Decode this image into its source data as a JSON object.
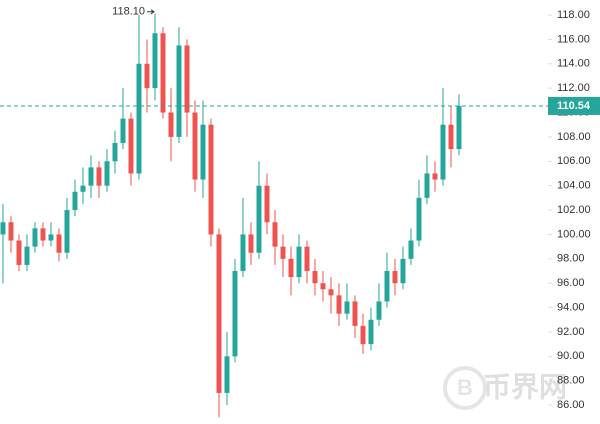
{
  "chart_data": {
    "type": "candlestick",
    "up_color": "#26a69a",
    "down_color": "#ef5350",
    "open": [
      100,
      101,
      99.5,
      97.5,
      99,
      100.5,
      99.5,
      100,
      98.5,
      102,
      103.5,
      104,
      105.5,
      104,
      106,
      107.5,
      109.5,
      105,
      114,
      112,
      116.5,
      110,
      108,
      115.5,
      110,
      104.5,
      109,
      100,
      87,
      90,
      97,
      100,
      98.5,
      104,
      101,
      99,
      98,
      96.5,
      99,
      97,
      96,
      95.5,
      95,
      93.5,
      94.5,
      92.5,
      91,
      93,
      94.5,
      97,
      96,
      98,
      99.5,
      103,
      105,
      104.5,
      109,
      107
    ],
    "high": [
      102.5,
      101.5,
      100,
      100,
      101,
      101,
      101,
      100.5,
      103,
      104.5,
      105.5,
      106.5,
      106,
      107,
      108.5,
      112,
      110,
      118,
      116,
      118.1,
      117,
      112,
      117,
      116,
      111,
      111,
      109.5,
      100.5,
      92,
      98,
      103,
      101,
      106,
      105,
      102,
      100,
      99,
      100,
      99.5,
      98,
      97,
      96.5,
      96,
      96,
      95,
      93.5,
      94,
      96,
      98.5,
      98,
      99,
      100.5,
      104.5,
      106.5,
      106,
      112,
      110.5,
      111.5
    ],
    "low": [
      96,
      98.5,
      97,
      97,
      98.5,
      99,
      99,
      97.8,
      98,
      101.5,
      102.5,
      103,
      103,
      103.5,
      105,
      107,
      104,
      104.5,
      110,
      111,
      109.5,
      106,
      107.5,
      108,
      103.5,
      103,
      99,
      85,
      86,
      89.5,
      96.5,
      97.5,
      98,
      100,
      97.5,
      96.5,
      95,
      96,
      96,
      95,
      94.5,
      93.5,
      92.5,
      93,
      91.5,
      90.2,
      90.5,
      92.5,
      94,
      95,
      95.5,
      97.5,
      99,
      102.5,
      103.5,
      104,
      105.5,
      106.5
    ],
    "close": [
      101,
      99.5,
      97.5,
      99,
      100.5,
      99.5,
      100,
      98.5,
      102,
      103.5,
      104,
      105.5,
      104,
      106,
      107.5,
      109.5,
      105,
      114,
      112,
      116.5,
      110,
      108,
      115.5,
      110,
      104.5,
      109,
      100,
      87,
      90,
      97,
      100,
      98.5,
      104,
      101,
      99,
      98,
      96.5,
      99,
      97,
      96,
      95.5,
      95,
      93.5,
      94.5,
      92.5,
      91,
      93,
      94.5,
      97,
      96,
      98,
      99.5,
      103,
      105,
      104.5,
      109,
      107,
      110.54
    ],
    "ylim": [
      84.45,
      119.23
    ],
    "yticks": [
      {
        "value": 86,
        "label": "86.00"
      },
      {
        "value": 88,
        "label": "88.00"
      },
      {
        "value": 90,
        "label": "90.00"
      },
      {
        "value": 92,
        "label": "92.00"
      },
      {
        "value": 94,
        "label": "94.00"
      },
      {
        "value": 96,
        "label": "96.00"
      },
      {
        "value": 98,
        "label": "98.00"
      },
      {
        "value": 100,
        "label": "100.00"
      },
      {
        "value": 102,
        "label": "102.00"
      },
      {
        "value": 104,
        "label": "104.00"
      },
      {
        "value": 106,
        "label": "106.00"
      },
      {
        "value": 108,
        "label": "108.00"
      },
      {
        "value": 110,
        "label": "110.00"
      },
      {
        "value": 112,
        "label": "112.00"
      },
      {
        "value": 114,
        "label": "114.00"
      },
      {
        "value": 116,
        "label": "116.00"
      },
      {
        "value": 118,
        "label": "118.00"
      }
    ],
    "last_price": {
      "value": 110.54,
      "label": "110.54"
    },
    "max_label": {
      "value": 118.1,
      "label": "118.10"
    },
    "watermark": "币界网"
  }
}
